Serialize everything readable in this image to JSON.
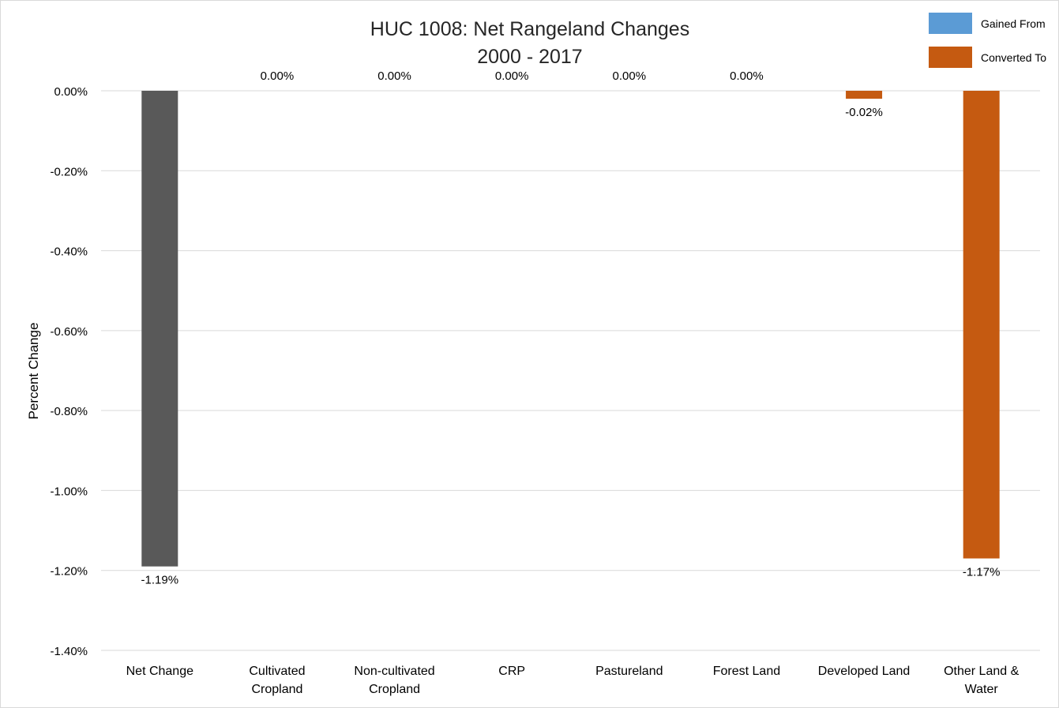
{
  "chart_data": {
    "type": "bar",
    "title": "HUC 1008: Net Rangeland Changes",
    "subtitle": "2000 - 2017",
    "xlabel": "",
    "ylabel": "Percent Change",
    "ylim": [
      -1.4,
      0
    ],
    "yticks": [
      0,
      -0.2,
      -0.4,
      -0.6,
      -0.8,
      -1.0,
      -1.2,
      -1.4
    ],
    "ytick_labels": [
      "0.00%",
      "-0.20%",
      "-0.40%",
      "-0.60%",
      "-0.80%",
      "-1.00%",
      "-1.20%",
      "-1.40%"
    ],
    "grid": true,
    "legend_position": "top-right",
    "legend": [
      {
        "name": "Gained From",
        "color": "#5b9bd5"
      },
      {
        "name": "Converted To",
        "color": "#c55a11"
      }
    ],
    "categories": [
      [
        "Net Change"
      ],
      [
        "Cultivated",
        "Cropland"
      ],
      [
        "Non-cultivated",
        "Cropland"
      ],
      [
        "CRP"
      ],
      [
        "Pastureland"
      ],
      [
        "Forest Land"
      ],
      [
        "Developed Land"
      ],
      [
        "Other Land &",
        "Water"
      ]
    ],
    "values": [
      -1.19,
      0,
      0,
      0,
      0,
      0,
      -0.02,
      -1.17
    ],
    "value_labels": [
      "-1.19%",
      "0.00%",
      "0.00%",
      "0.00%",
      "0.00%",
      "0.00%",
      "-0.02%",
      "-1.17%"
    ],
    "bar_colors": [
      "#595959",
      "#c55a11",
      "#c55a11",
      "#c55a11",
      "#c55a11",
      "#c55a11",
      "#c55a11",
      "#c55a11"
    ]
  }
}
